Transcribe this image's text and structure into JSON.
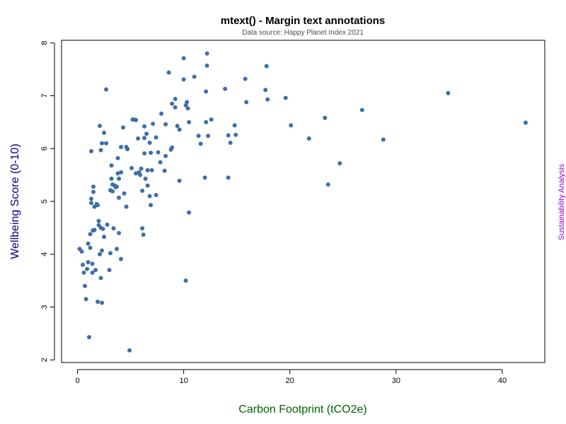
{
  "chart_data": {
    "type": "scatter",
    "title": "mtext() - Margin text annotations",
    "subtitle": "Data source: Happy Planet Index 2021",
    "xlabel": "Carbon Footprint (tCO2e)",
    "ylabel": "Wellbeing Score (0-10)",
    "right_margin_text": "Sustainability Analysis",
    "xlim": [
      -1.5,
      44
    ],
    "ylim": [
      1.95,
      8.05
    ],
    "x_ticks": [
      0,
      10,
      20,
      30,
      40
    ],
    "y_ticks": [
      2,
      3,
      4,
      5,
      6,
      7,
      8
    ],
    "grid": false,
    "legend": "none",
    "colors": {
      "points": "#3E6FA8",
      "title": "#000000",
      "subtitle": "#4D4D4D",
      "xlabel": "#006400",
      "ylabel": "#00008B",
      "right_margin": "#9400D3",
      "axis": "#000000"
    },
    "points": [
      [
        0.2,
        4.1
      ],
      [
        0.4,
        4.05
      ],
      [
        0.5,
        3.8
      ],
      [
        0.6,
        3.65
      ],
      [
        0.7,
        3.4
      ],
      [
        0.8,
        3.15
      ],
      [
        0.9,
        3.72
      ],
      [
        1.0,
        3.85
      ],
      [
        1.0,
        4.2
      ],
      [
        1.1,
        2.43
      ],
      [
        1.2,
        4.38
      ],
      [
        1.2,
        4.12
      ],
      [
        1.3,
        5.05
      ],
      [
        1.3,
        5.95
      ],
      [
        1.3,
        4.97
      ],
      [
        1.4,
        3.82
      ],
      [
        1.4,
        3.65
      ],
      [
        1.45,
        4.45
      ],
      [
        1.5,
        5.28
      ],
      [
        1.5,
        5.18
      ],
      [
        1.6,
        4.9
      ],
      [
        1.6,
        4.46
      ],
      [
        1.7,
        3.7
      ],
      [
        1.8,
        4.95
      ],
      [
        1.9,
        4.93
      ],
      [
        1.9,
        3.1
      ],
      [
        2.0,
        4.63
      ],
      [
        2.0,
        4.55
      ],
      [
        2.1,
        6.43
      ],
      [
        2.1,
        4.0
      ],
      [
        2.2,
        5.97
      ],
      [
        2.2,
        4.5
      ],
      [
        2.2,
        3.55
      ],
      [
        2.3,
        6.1
      ],
      [
        2.3,
        4.07
      ],
      [
        2.3,
        3.08
      ],
      [
        2.4,
        4.48
      ],
      [
        2.5,
        6.3
      ],
      [
        2.5,
        4.33
      ],
      [
        2.7,
        6.1
      ],
      [
        2.7,
        7.12
      ],
      [
        2.8,
        4.56
      ],
      [
        3.0,
        3.7
      ],
      [
        3.1,
        4.02
      ],
      [
        3.1,
        5.21
      ],
      [
        3.2,
        5.43
      ],
      [
        3.2,
        5.68
      ],
      [
        3.3,
        5.32
      ],
      [
        3.3,
        5.19
      ],
      [
        3.4,
        4.49
      ],
      [
        3.5,
        5.3
      ],
      [
        3.6,
        5.27
      ],
      [
        3.7,
        5.28
      ],
      [
        3.7,
        4.1
      ],
      [
        3.8,
        5.53
      ],
      [
        3.8,
        5.82
      ],
      [
        3.9,
        5.43
      ],
      [
        3.9,
        5.07
      ],
      [
        3.9,
        4.4
      ],
      [
        4.1,
        6.03
      ],
      [
        4.1,
        5.55
      ],
      [
        4.1,
        3.91
      ],
      [
        4.3,
        6.4
      ],
      [
        4.4,
        5.15
      ],
      [
        4.6,
        6.03
      ],
      [
        4.6,
        4.9
      ],
      [
        4.7,
        5.99
      ],
      [
        4.9,
        2.18
      ],
      [
        5.1,
        5.63
      ],
      [
        5.2,
        6.55
      ],
      [
        5.3,
        6.55
      ],
      [
        5.5,
        6.54
      ],
      [
        5.5,
        5.53
      ],
      [
        5.7,
        6.19
      ],
      [
        5.8,
        5.55
      ],
      [
        5.9,
        5.5
      ],
      [
        6.0,
        5.62
      ],
      [
        6.1,
        5.2
      ],
      [
        6.1,
        4.49
      ],
      [
        6.2,
        4.37
      ],
      [
        6.3,
        6.42
      ],
      [
        6.3,
        6.2
      ],
      [
        6.3,
        5.91
      ],
      [
        6.4,
        5.43
      ],
      [
        6.5,
        6.28
      ],
      [
        6.6,
        5.3
      ],
      [
        6.6,
        5.59
      ],
      [
        6.8,
        6.11
      ],
      [
        6.8,
        5.1
      ],
      [
        6.9,
        5.92
      ],
      [
        6.9,
        4.93
      ],
      [
        7.0,
        5.59
      ],
      [
        7.1,
        6.47
      ],
      [
        7.4,
        5.12
      ],
      [
        7.4,
        6.21
      ],
      [
        7.6,
        5.93
      ],
      [
        7.8,
        5.74
      ],
      [
        7.9,
        6.66
      ],
      [
        8.2,
        5.58
      ],
      [
        8.3,
        6.46
      ],
      [
        8.3,
        5.86
      ],
      [
        8.6,
        7.44
      ],
      [
        8.8,
        5.98
      ],
      [
        8.9,
        6.85
      ],
      [
        8.9,
        6.02
      ],
      [
        9.2,
        6.94
      ],
      [
        9.2,
        6.78
      ],
      [
        9.4,
        6.43
      ],
      [
        9.6,
        6.36
      ],
      [
        9.6,
        5.39
      ],
      [
        10.0,
        7.71
      ],
      [
        10.0,
        7.31
      ],
      [
        10.2,
        6.82
      ],
      [
        10.2,
        3.5
      ],
      [
        10.3,
        6.88
      ],
      [
        10.4,
        6.76
      ],
      [
        10.5,
        6.5
      ],
      [
        10.5,
        4.79
      ],
      [
        11.0,
        7.36
      ],
      [
        11.4,
        6.24
      ],
      [
        11.6,
        6.09
      ],
      [
        12.0,
        5.45
      ],
      [
        12.1,
        7.08
      ],
      [
        12.1,
        6.5
      ],
      [
        12.2,
        7.8
      ],
      [
        12.2,
        7.57
      ],
      [
        12.3,
        6.24
      ],
      [
        12.6,
        6.55
      ],
      [
        13.9,
        7.13
      ],
      [
        14.2,
        6.25
      ],
      [
        14.2,
        5.45
      ],
      [
        14.4,
        6.11
      ],
      [
        14.8,
        6.44
      ],
      [
        14.9,
        6.26
      ],
      [
        15.8,
        7.32
      ],
      [
        15.9,
        6.88
      ],
      [
        17.7,
        7.11
      ],
      [
        17.8,
        7.56
      ],
      [
        17.9,
        6.93
      ],
      [
        19.6,
        6.96
      ],
      [
        20.1,
        6.44
      ],
      [
        21.8,
        6.19
      ],
      [
        23.3,
        6.58
      ],
      [
        23.6,
        5.32
      ],
      [
        24.7,
        5.72
      ],
      [
        26.8,
        6.73
      ],
      [
        28.8,
        6.17
      ],
      [
        34.9,
        7.05
      ],
      [
        42.2,
        6.49
      ]
    ]
  }
}
